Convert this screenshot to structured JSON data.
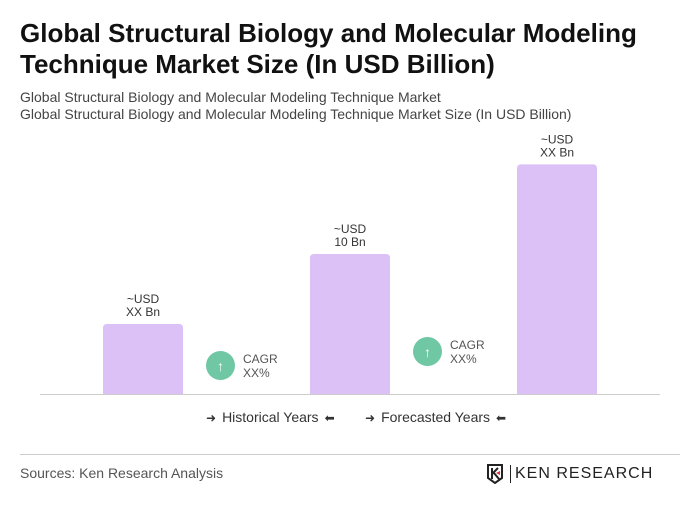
{
  "title": "Global Structural Biology and Molecular Modeling Technique Market Size (In USD Billion)",
  "subtitle1": "Global Structural Biology and Molecular Modeling Technique Market",
  "subtitle2": "Global Structural Biology and Molecular Modeling Technique Market Size (In USD Billion)",
  "chart_data": {
    "type": "bar",
    "categories": [
      "",
      "",
      ""
    ],
    "values": [
      5,
      10,
      16.4
    ],
    "data_labels": [
      [
        "~USD",
        "XX Bn"
      ],
      [
        "~USD",
        "10 Bn"
      ],
      [
        "~USD",
        "XX Bn"
      ]
    ],
    "bar_color": "#dcc1f7",
    "grid": false
  },
  "cagr": [
    {
      "label": "CAGR",
      "value": "XX%"
    },
    {
      "label": "CAGR",
      "value": "XX%"
    }
  ],
  "cagr_color": "#6fc7a3",
  "legend": {
    "historical": "Historical Years",
    "forecasted": "Forecasted Years",
    "arrow_right": "➜",
    "arrow_left": "⬅"
  },
  "source": "Sources: Ken Research Analysis",
  "logo": "KEN RESEARCH"
}
